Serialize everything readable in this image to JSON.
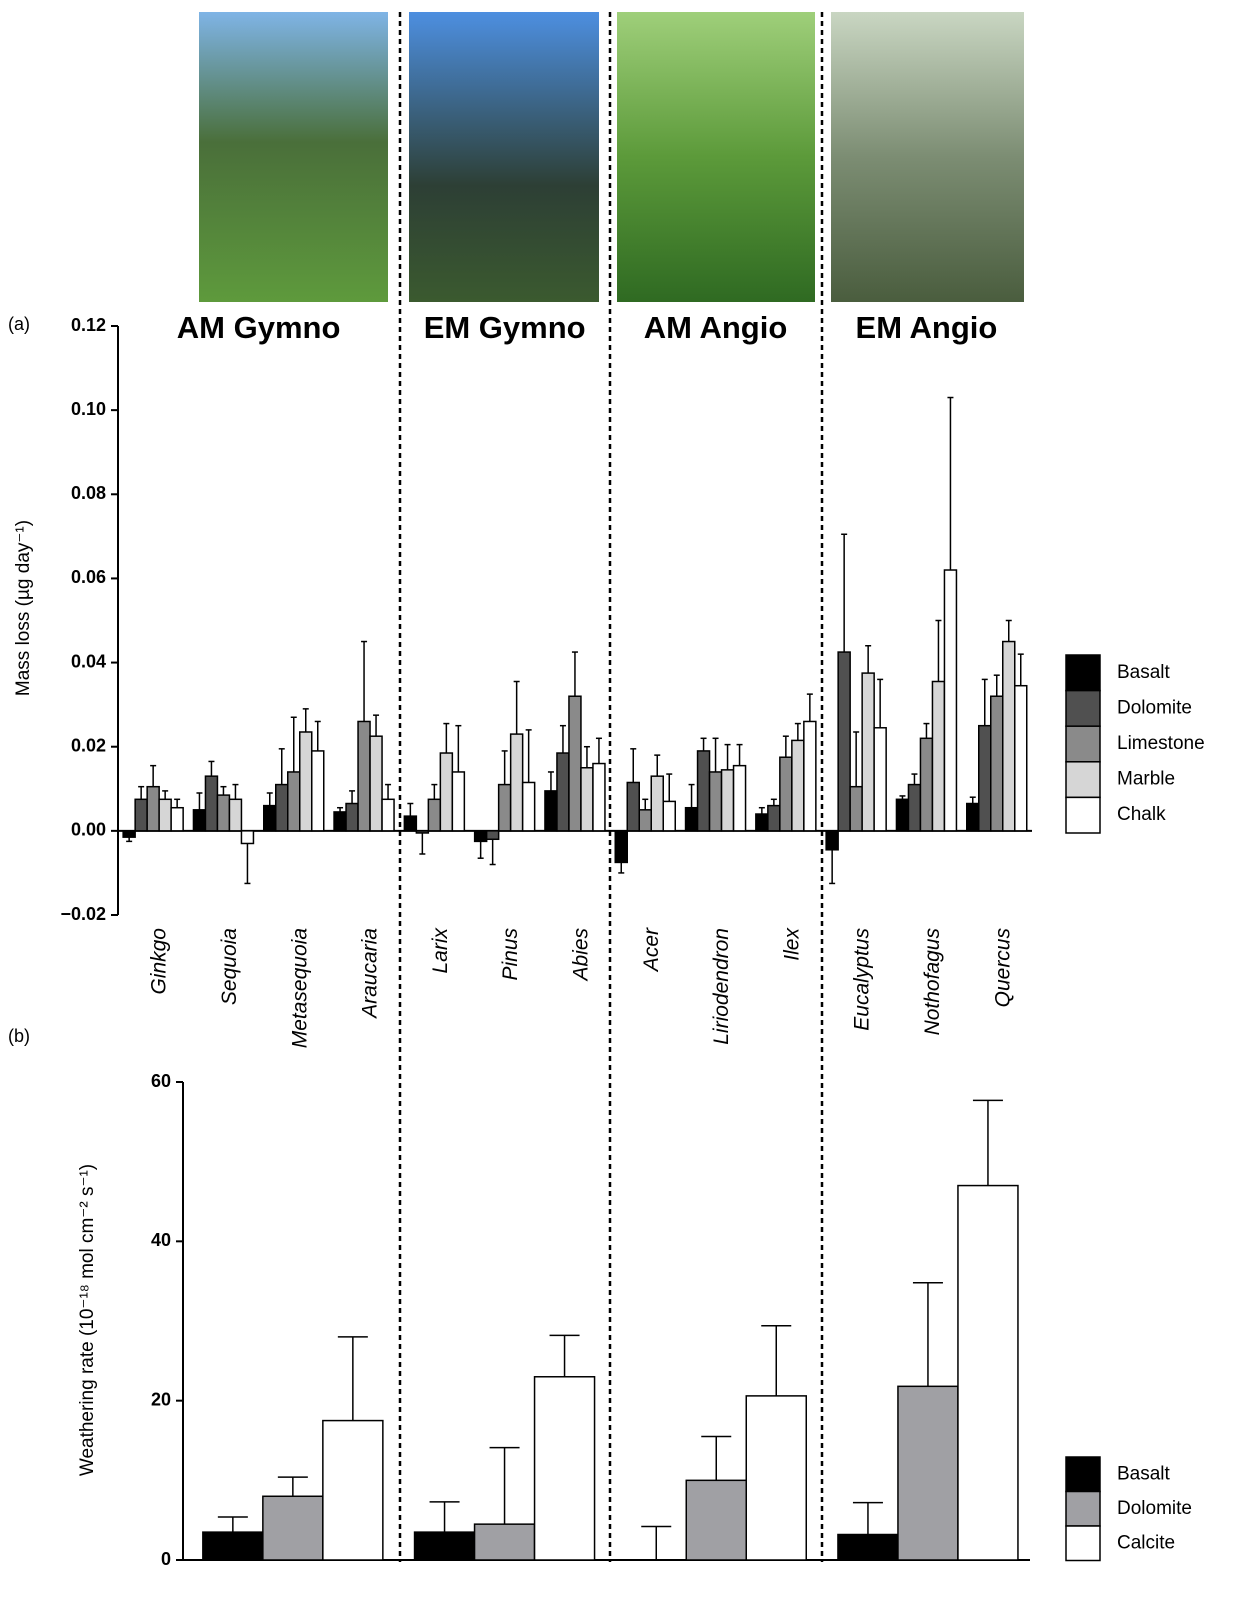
{
  "chart_data": [
    {
      "type": "bar",
      "panel_label": "(a)",
      "group_labels": [
        "AM Gymno",
        "EM Gymno",
        "AM Angio",
        "EM Angio"
      ],
      "y_label": "Mass loss (µg day⁻¹)",
      "categories": [
        "Ginkgo",
        "Sequoia",
        "Metasequoia",
        "Araucaria",
        "Larix",
        "Pinus",
        "Abies",
        "Acer",
        "Liriodendron",
        "Ilex",
        "Eucalyptus",
        "Nothofagus",
        "Quercus"
      ],
      "series": [
        {
          "name": "Basalt",
          "color": "#000000",
          "values": [
            -0.0015,
            0.005,
            0.006,
            0.0045,
            0.0035,
            -0.0025,
            0.0095,
            -0.0075,
            0.0055,
            0.004,
            -0.0045,
            0.0075,
            0.0065
          ],
          "errors": [
            0.001,
            0.004,
            0.003,
            0.001,
            0.003,
            0.004,
            0.0045,
            0.0025,
            0.0055,
            0.0015,
            0.008,
            0.0008,
            0.0015
          ]
        },
        {
          "name": "Dolomite",
          "color": "#505050",
          "values": [
            0.0075,
            0.013,
            0.011,
            0.0065,
            -0.0005,
            -0.002,
            0.0185,
            0.0115,
            0.019,
            0.006,
            0.0425,
            0.011,
            0.025
          ],
          "errors": [
            0.003,
            0.0035,
            0.0085,
            0.003,
            0.005,
            0.006,
            0.0065,
            0.008,
            0.003,
            0.0015,
            0.028,
            0.0025,
            0.011
          ]
        },
        {
          "name": "Limestone",
          "color": "#8a8a8a",
          "values": [
            0.0105,
            0.0085,
            0.014,
            0.026,
            0.0075,
            0.011,
            0.032,
            0.005,
            0.014,
            0.0175,
            0.0105,
            0.022,
            0.032
          ],
          "errors": [
            0.005,
            0.002,
            0.013,
            0.019,
            0.0035,
            0.008,
            0.0105,
            0.0025,
            0.008,
            0.005,
            0.013,
            0.0035,
            0.005
          ]
        },
        {
          "name": "Marble",
          "color": "#d6d6d6",
          "values": [
            0.0075,
            0.0075,
            0.0235,
            0.0225,
            0.0185,
            0.023,
            0.015,
            0.013,
            0.0145,
            0.0215,
            0.0375,
            0.0355,
            0.045
          ],
          "errors": [
            0.002,
            0.0035,
            0.0055,
            0.005,
            0.007,
            0.0125,
            0.005,
            0.005,
            0.006,
            0.004,
            0.0065,
            0.0145,
            0.005
          ]
        },
        {
          "name": "Chalk",
          "color": "#ffffff",
          "values": [
            0.0055,
            -0.003,
            0.019,
            0.0075,
            0.014,
            0.0115,
            0.016,
            0.007,
            0.0155,
            0.026,
            0.0245,
            0.062,
            0.0345
          ],
          "errors": [
            0.002,
            0.0095,
            0.007,
            0.0035,
            0.011,
            0.0125,
            0.006,
            0.0065,
            0.005,
            0.0065,
            0.0115,
            0.041,
            0.0075
          ]
        }
      ],
      "ylim": [
        -0.02,
        0.12
      ],
      "yticks": [
        {
          "value": -0.02,
          "label": "−0.02"
        },
        {
          "value": 0,
          "label": "0.00"
        },
        0.02,
        0.04,
        0.06,
        0.08,
        {
          "value": 0.1,
          "label": "0.10"
        },
        0.12
      ],
      "legend": "right"
    },
    {
      "type": "bar",
      "panel_label": "(b)",
      "y_label": "Weathering rate (10⁻¹⁸ mol cm⁻² s⁻¹)",
      "categories": [
        null,
        null,
        null,
        null
      ],
      "series": [
        {
          "name": "Basalt",
          "color": "#000000",
          "values": [
            3.5,
            3.5,
            0,
            3.2
          ],
          "errors": [
            1.9,
            3.8,
            4.2,
            4
          ]
        },
        {
          "name": "Dolomite",
          "color": "#a0a0a4",
          "values": [
            8,
            4.5,
            10,
            21.8
          ],
          "errors": [
            2.4,
            9.6,
            5.5,
            13
          ]
        },
        {
          "name": "Calcite",
          "color": "#ffffff",
          "values": [
            17.5,
            23,
            20.6,
            47
          ],
          "errors": [
            10.5,
            5.2,
            8.8,
            10.7
          ]
        }
      ],
      "ylim": [
        0,
        60
      ],
      "yticks": [
        0,
        20,
        40,
        60
      ],
      "legend": "right"
    }
  ]
}
